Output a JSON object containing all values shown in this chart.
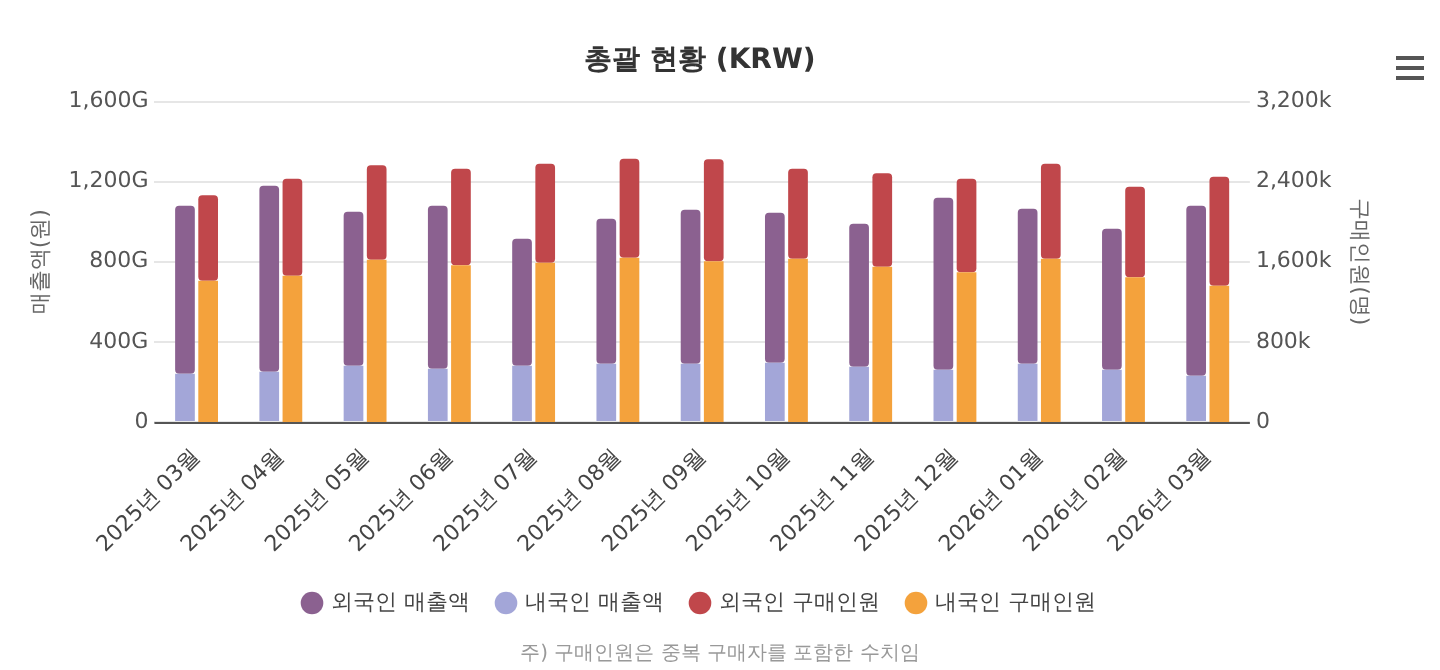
{
  "chart_data": {
    "type": "bar",
    "title": "총괄 현황 (KRW)",
    "ylabel": "매출액(원)",
    "y2label": "구매인원(명)",
    "categories": [
      "2025년 03월",
      "2025년 04월",
      "2025년 05월",
      "2025년 06월",
      "2025년 07월",
      "2025년 08월",
      "2025년 09월",
      "2025년 10월",
      "2025년 11월",
      "2025년 12월",
      "2026년 01월",
      "2026년 02월",
      "2026년 03월"
    ],
    "stacked": true,
    "series": [
      {
        "name": "내국인 매출액",
        "color": "#a3a6d8",
        "values": [
          240,
          250,
          280,
          265,
          280,
          290,
          290,
          295,
          275,
          260,
          290,
          260,
          230
        ]
      },
      {
        "name": "외국인 매출액",
        "color": "#8b6190",
        "values": [
          840,
          930,
          770,
          815,
          635,
          725,
          770,
          750,
          715,
          860,
          775,
          705,
          850
        ]
      },
      {
        "name": "내국인 구매인원",
        "color": "#f4a23c",
        "axis": "y2",
        "values": [
          1410,
          1460,
          1620,
          1565,
          1590,
          1640,
          1605,
          1630,
          1550,
          1495,
          1630,
          1445,
          1360
        ]
      },
      {
        "name": "외국인 구매인원",
        "color": "#c0474b",
        "axis": "y2",
        "values": [
          855,
          970,
          945,
          965,
          990,
          990,
          1020,
          900,
          935,
          935,
          950,
          905,
          1090
        ]
      }
    ],
    "ylim": [
      0,
      1600
    ],
    "yticks": [
      0,
      {
        "value": 400,
        "label": "400G"
      },
      {
        "value": 800,
        "label": "800G"
      },
      {
        "value": 1200,
        "label": "1,200G"
      },
      {
        "value": 1600,
        "label": "1,600G"
      }
    ],
    "y2lim": [
      0,
      3200
    ],
    "y2ticks": [
      0,
      {
        "value": 800,
        "label": "800k"
      },
      {
        "value": 1600,
        "label": "1,600k"
      },
      {
        "value": 2400,
        "label": "2,400k"
      },
      {
        "value": 3200,
        "label": "3,200k"
      }
    ],
    "grid": "y",
    "legend": "bottom",
    "marker": "circle",
    "annotations": [
      "주) 구매인원은 중복 구매자를 포함한 수치임"
    ]
  }
}
